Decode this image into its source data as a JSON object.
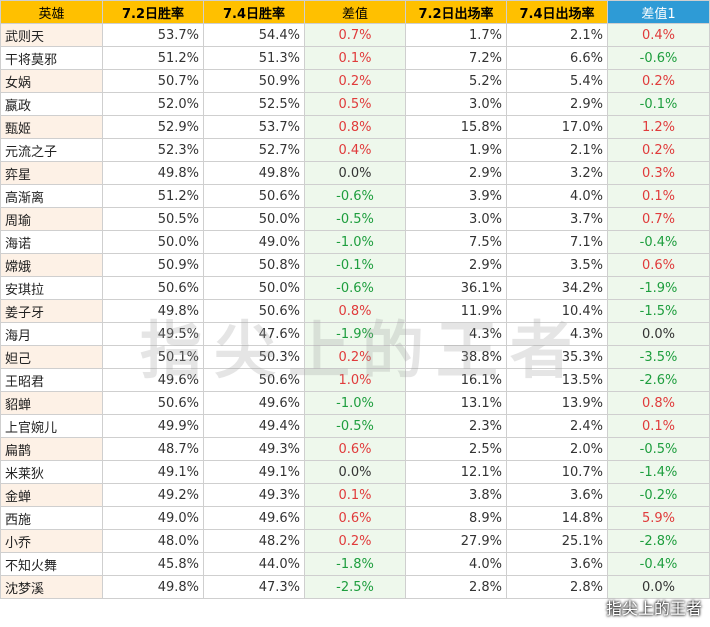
{
  "headers": [
    "英雄",
    "7.2日胜率",
    "7.4日胜率",
    "差值",
    "7.2日出场率",
    "7.4日出场率",
    "差值1"
  ],
  "rows": [
    [
      "武则天",
      "53.7%",
      "54.4%",
      "0.7%",
      "1.7%",
      "2.1%",
      "0.4%"
    ],
    [
      "干将莫邪",
      "51.2%",
      "51.3%",
      "0.1%",
      "7.2%",
      "6.6%",
      "-0.6%"
    ],
    [
      "女娲",
      "50.7%",
      "50.9%",
      "0.2%",
      "5.2%",
      "5.4%",
      "0.2%"
    ],
    [
      "嬴政",
      "52.0%",
      "52.5%",
      "0.5%",
      "3.0%",
      "2.9%",
      "-0.1%"
    ],
    [
      "甄姬",
      "52.9%",
      "53.7%",
      "0.8%",
      "15.8%",
      "17.0%",
      "1.2%"
    ],
    [
      "元流之子",
      "52.3%",
      "52.7%",
      "0.4%",
      "1.9%",
      "2.1%",
      "0.2%"
    ],
    [
      "弈星",
      "49.8%",
      "49.8%",
      "0.0%",
      "2.9%",
      "3.2%",
      "0.3%"
    ],
    [
      "高渐离",
      "51.2%",
      "50.6%",
      "-0.6%",
      "3.9%",
      "4.0%",
      "0.1%"
    ],
    [
      "周瑜",
      "50.5%",
      "50.0%",
      "-0.5%",
      "3.0%",
      "3.7%",
      "0.7%"
    ],
    [
      "海诺",
      "50.0%",
      "49.0%",
      "-1.0%",
      "7.5%",
      "7.1%",
      "-0.4%"
    ],
    [
      "嫦娥",
      "50.9%",
      "50.8%",
      "-0.1%",
      "2.9%",
      "3.5%",
      "0.6%"
    ],
    [
      "安琪拉",
      "50.6%",
      "50.0%",
      "-0.6%",
      "36.1%",
      "34.2%",
      "-1.9%"
    ],
    [
      "姜子牙",
      "49.8%",
      "50.6%",
      "0.8%",
      "11.9%",
      "10.4%",
      "-1.5%"
    ],
    [
      "海月",
      "49.5%",
      "47.6%",
      "-1.9%",
      "4.3%",
      "4.3%",
      "0.0%"
    ],
    [
      "妲己",
      "50.1%",
      "50.3%",
      "0.2%",
      "38.8%",
      "35.3%",
      "-3.5%"
    ],
    [
      "王昭君",
      "49.6%",
      "50.6%",
      "1.0%",
      "16.1%",
      "13.5%",
      "-2.6%"
    ],
    [
      "貂蝉",
      "50.6%",
      "49.6%",
      "-1.0%",
      "13.1%",
      "13.9%",
      "0.8%"
    ],
    [
      "上官婉儿",
      "49.9%",
      "49.4%",
      "-0.5%",
      "2.3%",
      "2.4%",
      "0.1%"
    ],
    [
      "扁鹊",
      "48.7%",
      "49.3%",
      "0.6%",
      "2.5%",
      "2.0%",
      "-0.5%"
    ],
    [
      "米莱狄",
      "49.1%",
      "49.1%",
      "0.0%",
      "12.1%",
      "10.7%",
      "-1.4%"
    ],
    [
      "金蝉",
      "49.2%",
      "49.3%",
      "0.1%",
      "3.8%",
      "3.6%",
      "-0.2%"
    ],
    [
      "西施",
      "49.0%",
      "49.6%",
      "0.6%",
      "8.9%",
      "14.8%",
      "5.9%"
    ],
    [
      "小乔",
      "48.0%",
      "48.2%",
      "0.2%",
      "27.9%",
      "25.1%",
      "-2.8%"
    ],
    [
      "不知火舞",
      "45.8%",
      "44.0%",
      "-1.8%",
      "4.0%",
      "3.6%",
      "-0.4%"
    ],
    [
      "沈梦溪",
      "49.8%",
      "47.3%",
      "-2.5%",
      "2.8%",
      "2.8%",
      "0.0%"
    ]
  ],
  "watermark": "指尖上的王者",
  "corner_watermark": "指尖上的王者",
  "colors": {
    "header_bg": "#ffc000",
    "header_alt_bg": "#2e9bd6",
    "positive": "#e03b3b",
    "negative": "#1e9e3e"
  }
}
